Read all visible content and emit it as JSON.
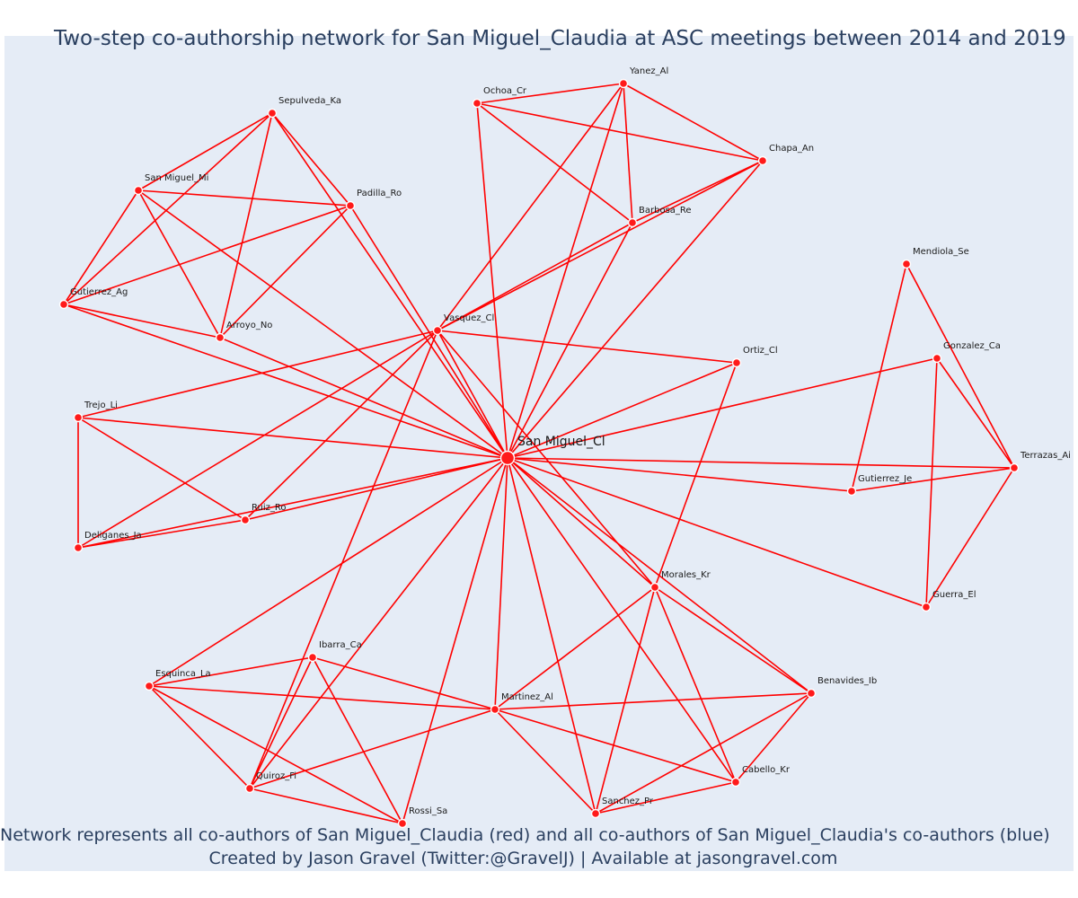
{
  "title": "Two-step co-authorship network for San Miguel_Claudia at ASC meetings between 2014 and 2019",
  "caption": {
    "line1": "Network represents all co-authors of San Miguel_Claudia (red) and all co-authors of San Miguel_Claudia's co-authors (blue)",
    "line2": "Created by Jason Gravel (Twitter:@GravelJ) | Available at jasongravel.com"
  },
  "colors": {
    "background": "#e5ecf6",
    "edge": "#ff0000",
    "node": "#ff1a1a",
    "text": "#2a3f5f"
  },
  "nodes": [
    {
      "id": "San Miguel_Cl",
      "center": true
    },
    {
      "id": "Yanez_Al"
    },
    {
      "id": "Ochoa_Cr"
    },
    {
      "id": "Chapa_An"
    },
    {
      "id": "Barbosa_Re"
    },
    {
      "id": "Sepulveda_Ka"
    },
    {
      "id": "San Miguel_Mi"
    },
    {
      "id": "Padilla_Ro"
    },
    {
      "id": "Gutierrez_Ag"
    },
    {
      "id": "Arroyo_No"
    },
    {
      "id": "Vasquez_Cl"
    },
    {
      "id": "Ortiz_Cl"
    },
    {
      "id": "Mendiola_Se"
    },
    {
      "id": "Gonzalez_Ca"
    },
    {
      "id": "Terrazas_Ai"
    },
    {
      "id": "Gutierrez_Je"
    },
    {
      "id": "Guerra_El"
    },
    {
      "id": "Trejo_Li"
    },
    {
      "id": "Ruiz_Ro"
    },
    {
      "id": "Deliganes_Ja"
    },
    {
      "id": "Morales_Kr"
    },
    {
      "id": "Benavides_Ib"
    },
    {
      "id": "Ibarra_Ca"
    },
    {
      "id": "Esquinca_La"
    },
    {
      "id": "Martinez_Al"
    },
    {
      "id": "Quiroz_Fi"
    },
    {
      "id": "Rossi_Sa"
    },
    {
      "id": "Sanchez_Pr"
    },
    {
      "id": "Cabello_Kr"
    }
  ],
  "edges": [
    [
      "San Miguel_Cl",
      "Yanez_Al"
    ],
    [
      "San Miguel_Cl",
      "Ochoa_Cr"
    ],
    [
      "San Miguel_Cl",
      "Chapa_An"
    ],
    [
      "San Miguel_Cl",
      "Barbosa_Re"
    ],
    [
      "San Miguel_Cl",
      "Sepulveda_Ka"
    ],
    [
      "San Miguel_Cl",
      "San Miguel_Mi"
    ],
    [
      "San Miguel_Cl",
      "Padilla_Ro"
    ],
    [
      "San Miguel_Cl",
      "Gutierrez_Ag"
    ],
    [
      "San Miguel_Cl",
      "Arroyo_No"
    ],
    [
      "San Miguel_Cl",
      "Vasquez_Cl"
    ],
    [
      "San Miguel_Cl",
      "Ortiz_Cl"
    ],
    [
      "San Miguel_Cl",
      "Gonzalez_Ca"
    ],
    [
      "San Miguel_Cl",
      "Terrazas_Ai"
    ],
    [
      "San Miguel_Cl",
      "Gutierrez_Je"
    ],
    [
      "San Miguel_Cl",
      "Guerra_El"
    ],
    [
      "San Miguel_Cl",
      "Trejo_Li"
    ],
    [
      "San Miguel_Cl",
      "Ruiz_Ro"
    ],
    [
      "San Miguel_Cl",
      "Deliganes_Ja"
    ],
    [
      "San Miguel_Cl",
      "Morales_Kr"
    ],
    [
      "San Miguel_Cl",
      "Benavides_Ib"
    ],
    [
      "San Miguel_Cl",
      "Esquinca_La"
    ],
    [
      "San Miguel_Cl",
      "Martinez_Al"
    ],
    [
      "San Miguel_Cl",
      "Quiroz_Fi"
    ],
    [
      "San Miguel_Cl",
      "Rossi_Sa"
    ],
    [
      "San Miguel_Cl",
      "Sanchez_Pr"
    ],
    [
      "San Miguel_Cl",
      "Cabello_Kr"
    ],
    [
      "Ochoa_Cr",
      "Yanez_Al"
    ],
    [
      "Ochoa_Cr",
      "Chapa_An"
    ],
    [
      "Ochoa_Cr",
      "Barbosa_Re"
    ],
    [
      "Yanez_Al",
      "Chapa_An"
    ],
    [
      "Yanez_Al",
      "Barbosa_Re"
    ],
    [
      "Yanez_Al",
      "Vasquez_Cl"
    ],
    [
      "Chapa_An",
      "Barbosa_Re"
    ],
    [
      "Chapa_An",
      "Vasquez_Cl"
    ],
    [
      "Barbosa_Re",
      "Vasquez_Cl"
    ],
    [
      "Sepulveda_Ka",
      "San Miguel_Mi"
    ],
    [
      "Sepulveda_Ka",
      "Padilla_Ro"
    ],
    [
      "Sepulveda_Ka",
      "Gutierrez_Ag"
    ],
    [
      "Sepulveda_Ka",
      "Arroyo_No"
    ],
    [
      "San Miguel_Mi",
      "Padilla_Ro"
    ],
    [
      "San Miguel_Mi",
      "Gutierrez_Ag"
    ],
    [
      "San Miguel_Mi",
      "Arroyo_No"
    ],
    [
      "Padilla_Ro",
      "Gutierrez_Ag"
    ],
    [
      "Padilla_Ro",
      "Arroyo_No"
    ],
    [
      "Gutierrez_Ag",
      "Arroyo_No"
    ],
    [
      "Vasquez_Cl",
      "Ortiz_Cl"
    ],
    [
      "Vasquez_Cl",
      "Trejo_Li"
    ],
    [
      "Vasquez_Cl",
      "Ruiz_Ro"
    ],
    [
      "Vasquez_Cl",
      "Deliganes_Ja"
    ],
    [
      "Vasquez_Cl",
      "Morales_Kr"
    ],
    [
      "Vasquez_Cl",
      "Quiroz_Fi"
    ],
    [
      "Ortiz_Cl",
      "Morales_Kr"
    ],
    [
      "Trejo_Li",
      "Ruiz_Ro"
    ],
    [
      "Trejo_Li",
      "Deliganes_Ja"
    ],
    [
      "Ruiz_Ro",
      "Deliganes_Ja"
    ],
    [
      "Mendiola_Se",
      "Gutierrez_Je"
    ],
    [
      "Mendiola_Se",
      "Terrazas_Ai"
    ],
    [
      "Gonzalez_Ca",
      "Terrazas_Ai"
    ],
    [
      "Gonzalez_Ca",
      "Guerra_El"
    ],
    [
      "Terrazas_Ai",
      "Gutierrez_Je"
    ],
    [
      "Terrazas_Ai",
      "Guerra_El"
    ],
    [
      "Morales_Kr",
      "Benavides_Ib"
    ],
    [
      "Morales_Kr",
      "Martinez_Al"
    ],
    [
      "Morales_Kr",
      "Sanchez_Pr"
    ],
    [
      "Morales_Kr",
      "Cabello_Kr"
    ],
    [
      "Martinez_Al",
      "Ibarra_Ca"
    ],
    [
      "Martinez_Al",
      "Esquinca_La"
    ],
    [
      "Martinez_Al",
      "Quiroz_Fi"
    ],
    [
      "Martinez_Al",
      "Benavides_Ib"
    ],
    [
      "Martinez_Al",
      "Sanchez_Pr"
    ],
    [
      "Martinez_Al",
      "Cabello_Kr"
    ],
    [
      "Ibarra_Ca",
      "Esquinca_La"
    ],
    [
      "Ibarra_Ca",
      "Quiroz_Fi"
    ],
    [
      "Ibarra_Ca",
      "Rossi_Sa"
    ],
    [
      "Esquinca_La",
      "Quiroz_Fi"
    ],
    [
      "Esquinca_La",
      "Rossi_Sa"
    ],
    [
      "Quiroz_Fi",
      "Rossi_Sa"
    ],
    [
      "Benavides_Ib",
      "Sanchez_Pr"
    ],
    [
      "Benavides_Ib",
      "Cabello_Kr"
    ],
    [
      "Sanchez_Pr",
      "Cabello_Kr"
    ]
  ]
}
